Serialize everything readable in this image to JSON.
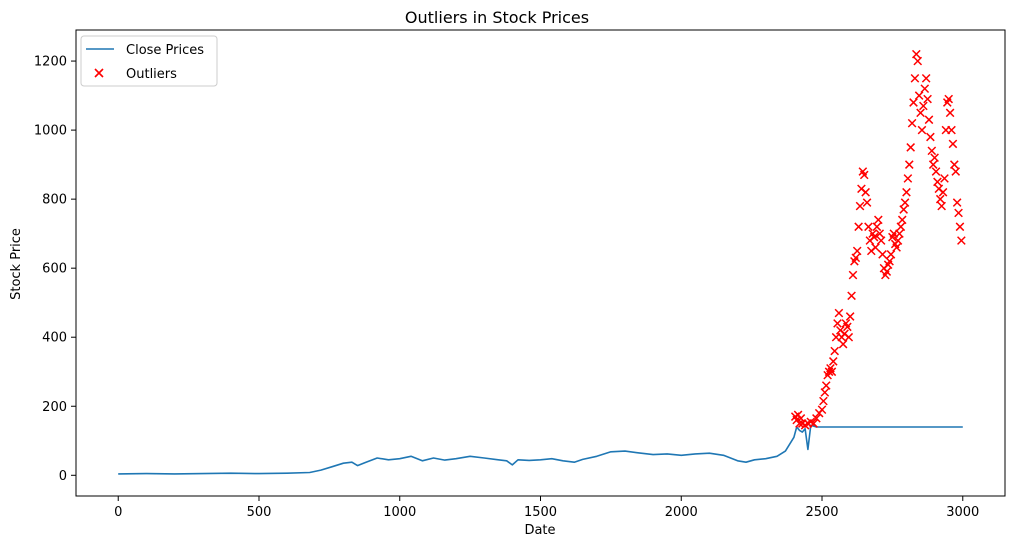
{
  "chart_data": {
    "type": "line",
    "title": "Outliers in Stock Prices",
    "xlabel": "Date",
    "ylabel": "Stock Price",
    "xlim": [
      -150,
      3150
    ],
    "ylim": [
      -60,
      1290
    ],
    "xticks": [
      0,
      500,
      1000,
      1500,
      2000,
      2500,
      3000
    ],
    "yticks": [
      0,
      200,
      400,
      600,
      800,
      1000,
      1200
    ],
    "grid": false,
    "legend": {
      "placement": "top-left",
      "entries": [
        "Close Prices",
        "Outliers"
      ]
    },
    "colors": {
      "line": "#1f77b4",
      "outliers": "#ff0000"
    },
    "series": [
      {
        "name": "Close Prices",
        "kind": "line",
        "x": [
          0,
          100,
          200,
          300,
          400,
          500,
          600,
          680,
          720,
          760,
          800,
          830,
          850,
          880,
          920,
          960,
          1000,
          1040,
          1080,
          1120,
          1160,
          1200,
          1250,
          1300,
          1350,
          1380,
          1400,
          1420,
          1460,
          1500,
          1540,
          1580,
          1620,
          1650,
          1700,
          1750,
          1800,
          1850,
          1900,
          1950,
          2000,
          2050,
          2100,
          2150,
          2200,
          2230,
          2260,
          2300,
          2340,
          2370,
          2400,
          2410,
          2420,
          2430,
          2440,
          2450,
          2460,
          2480,
          2500,
          3000
        ],
        "y": [
          4,
          5,
          4,
          5,
          6,
          5,
          6,
          8,
          15,
          25,
          35,
          38,
          28,
          38,
          50,
          45,
          48,
          55,
          42,
          50,
          44,
          48,
          55,
          50,
          45,
          42,
          30,
          45,
          43,
          45,
          48,
          42,
          38,
          46,
          55,
          68,
          70,
          65,
          60,
          62,
          58,
          62,
          64,
          58,
          42,
          38,
          45,
          48,
          55,
          70,
          110,
          140,
          130,
          125,
          135,
          75,
          145,
          140,
          140,
          140
        ]
      },
      {
        "name": "Outliers",
        "kind": "scatter",
        "marker": "x",
        "x": [
          2405,
          2410,
          2415,
          2420,
          2425,
          2430,
          2440,
          2450,
          2460,
          2470,
          2480,
          2490,
          2500,
          2505,
          2510,
          2515,
          2520,
          2525,
          2530,
          2535,
          2540,
          2545,
          2550,
          2555,
          2560,
          2565,
          2570,
          2575,
          2580,
          2585,
          2590,
          2595,
          2600,
          2605,
          2610,
          2615,
          2620,
          2625,
          2630,
          2635,
          2640,
          2645,
          2650,
          2655,
          2660,
          2665,
          2670,
          2675,
          2680,
          2685,
          2690,
          2695,
          2700,
          2705,
          2710,
          2715,
          2720,
          2725,
          2730,
          2735,
          2740,
          2745,
          2750,
          2755,
          2760,
          2765,
          2770,
          2775,
          2780,
          2785,
          2790,
          2795,
          2800,
          2805,
          2810,
          2815,
          2820,
          2825,
          2830,
          2835,
          2840,
          2845,
          2850,
          2855,
          2860,
          2865,
          2870,
          2875,
          2880,
          2885,
          2890,
          2895,
          2900,
          2905,
          2910,
          2915,
          2920,
          2925,
          2930,
          2935,
          2940,
          2945,
          2950,
          2955,
          2960,
          2965,
          2970,
          2975,
          2980,
          2985,
          2990,
          2995
        ],
        "y": [
          170,
          160,
          175,
          150,
          165,
          150,
          145,
          150,
          155,
          150,
          165,
          180,
          190,
          215,
          240,
          260,
          290,
          300,
          310,
          300,
          330,
          360,
          400,
          440,
          470,
          420,
          400,
          380,
          410,
          440,
          430,
          400,
          460,
          520,
          580,
          620,
          630,
          650,
          720,
          780,
          830,
          880,
          870,
          820,
          790,
          720,
          680,
          650,
          700,
          690,
          660,
          720,
          740,
          700,
          680,
          640,
          600,
          580,
          590,
          610,
          620,
          640,
          690,
          700,
          670,
          660,
          680,
          700,
          720,
          740,
          770,
          790,
          820,
          860,
          900,
          950,
          1020,
          1080,
          1150,
          1220,
          1200,
          1100,
          1050,
          1000,
          1070,
          1120,
          1150,
          1090,
          1030,
          980,
          940,
          900,
          920,
          880,
          850,
          830,
          800,
          780,
          820,
          860,
          1000,
          1080,
          1090,
          1050,
          1000,
          960,
          900,
          880,
          790,
          760,
          720,
          680
        ]
      }
    ]
  }
}
